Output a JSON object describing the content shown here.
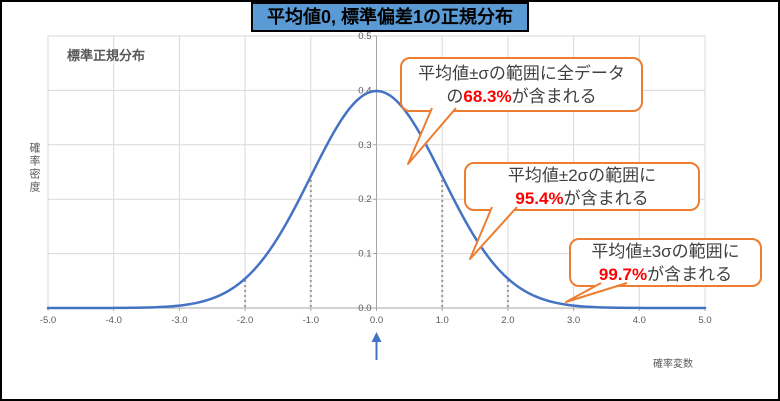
{
  "title": "平均値0, 標準偏差1の正規分布",
  "plot_label": "標準正規分布",
  "axes": {
    "x_title": "確率変数",
    "y_title": "確率密度"
  },
  "callouts": [
    {
      "line1": "平均値±σの範囲に全データ",
      "prefix": "の",
      "percent": "68.3%",
      "suffix": "が含まれる"
    },
    {
      "line1": "平均値±2σの範囲に",
      "prefix": "",
      "percent": "95.4%",
      "suffix": "が含まれる"
    },
    {
      "line1": "平均値±3σの範囲に",
      "prefix": "",
      "percent": "99.7%",
      "suffix": "が含まれる"
    }
  ],
  "colors": {
    "curve": "#4472C4",
    "callout_border": "#ED7D31",
    "title_bg": "#5B9BD5",
    "percent_red": "#FF0000",
    "grid": "#D9D9D9",
    "axis_line": "#A6A6A6",
    "axis_text": "#595959",
    "sigma_guide": "#999999",
    "frame": "#000000"
  },
  "chart_data": {
    "type": "line",
    "title": "平均値0, 標準偏差1の正規分布",
    "xlabel": "確率変数",
    "ylabel": "確率密度",
    "xlim": [
      -5,
      5
    ],
    "ylim": [
      0,
      0.5
    ],
    "x_ticks": [
      -5,
      -4,
      -3,
      -2,
      -1,
      0,
      1,
      2,
      3,
      4,
      5
    ],
    "x_tick_labels": [
      "-5.0",
      "-4.0",
      "-3.0",
      "-2.0",
      "-1.0",
      "0.0",
      "1.0",
      "2.0",
      "3.0",
      "4.0",
      "5.0"
    ],
    "y_ticks": [
      0,
      0.1,
      0.2,
      0.3,
      0.4,
      0.5
    ],
    "y_tick_labels": [
      "0.0",
      "0.1",
      "0.2",
      "0.3",
      "0.4",
      "0.5"
    ],
    "grid": true,
    "legend": "none",
    "distribution": {
      "name": "normal",
      "mean": 0,
      "sd": 1
    },
    "sigma_guides": [
      -2,
      -1,
      1,
      2
    ],
    "mean_marker": 0,
    "annotations": [
      {
        "range": "±1σ",
        "coverage_percent": 68.3
      },
      {
        "range": "±2σ",
        "coverage_percent": 95.4
      },
      {
        "range": "±3σ",
        "coverage_percent": 99.7
      }
    ],
    "series": [
      {
        "name": "標準正規分布",
        "points": [
          [
            -5,
            0.0
          ],
          [
            -4.5,
            0.0
          ],
          [
            -4,
            0.0001
          ],
          [
            -3.5,
            0.0009
          ],
          [
            -3,
            0.0044
          ],
          [
            -2.5,
            0.0175
          ],
          [
            -2,
            0.054
          ],
          [
            -1.5,
            0.1295
          ],
          [
            -1,
            0.242
          ],
          [
            -0.5,
            0.3521
          ],
          [
            0,
            0.3989
          ],
          [
            0.5,
            0.3521
          ],
          [
            1,
            0.242
          ],
          [
            1.5,
            0.1295
          ],
          [
            2,
            0.054
          ],
          [
            2.5,
            0.0175
          ],
          [
            3,
            0.0044
          ],
          [
            3.5,
            0.0009
          ],
          [
            4,
            0.0001
          ],
          [
            4.5,
            0.0
          ],
          [
            5,
            0.0
          ]
        ]
      }
    ]
  }
}
